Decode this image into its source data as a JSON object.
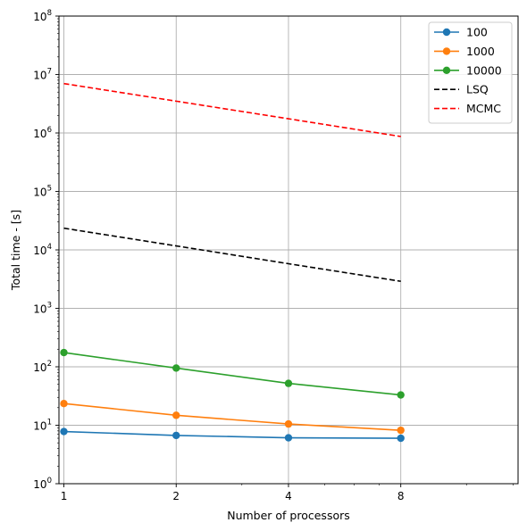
{
  "chart_data": {
    "type": "line",
    "title": "",
    "xlabel": "Number of processors",
    "ylabel": "Total time - [s]",
    "x_scale": "log2",
    "y_scale": "log10",
    "xlim": [
      0.97,
      16.5
    ],
    "ylim": [
      1,
      100000000
    ],
    "x_ticks": [
      {
        "value": 1,
        "label": "1"
      },
      {
        "value": 2,
        "label": "2"
      },
      {
        "value": 4,
        "label": "4"
      },
      {
        "value": 8,
        "label": "8"
      }
    ],
    "y_ticks": [
      {
        "value": 1,
        "base": "10",
        "exp": "0"
      },
      {
        "value": 10,
        "base": "10",
        "exp": "1"
      },
      {
        "value": 100,
        "base": "10",
        "exp": "2"
      },
      {
        "value": 1000,
        "base": "10",
        "exp": "3"
      },
      {
        "value": 10000,
        "base": "10",
        "exp": "4"
      },
      {
        "value": 100000,
        "base": "10",
        "exp": "5"
      },
      {
        "value": 1000000,
        "base": "10",
        "exp": "6"
      },
      {
        "value": 10000000,
        "base": "10",
        "exp": "7"
      },
      {
        "value": 100000000,
        "base": "10",
        "exp": "8"
      }
    ],
    "grid": true,
    "legend_position": "top-right",
    "x": [
      1,
      2,
      4,
      8
    ],
    "series": [
      {
        "name": "100",
        "values": [
          7.8,
          6.7,
          6.1,
          6.0
        ],
        "color": "#1f77b4",
        "style": "solid",
        "marker": "circle"
      },
      {
        "name": "1000",
        "values": [
          23.5,
          14.8,
          10.5,
          8.2
        ],
        "color": "#ff7f0e",
        "style": "solid",
        "marker": "circle"
      },
      {
        "name": "10000",
        "values": [
          175,
          95,
          52,
          33
        ],
        "color": "#2ca02c",
        "style": "solid",
        "marker": "circle"
      },
      {
        "name": "LSQ",
        "values": [
          23500,
          11700,
          5800,
          2900
        ],
        "color": "#000000",
        "style": "dashed",
        "marker": "none"
      },
      {
        "name": "MCMC",
        "values": [
          7000000,
          3500000,
          1750000,
          870000
        ],
        "color": "#ff0000",
        "style": "dashed",
        "marker": "none"
      }
    ]
  }
}
